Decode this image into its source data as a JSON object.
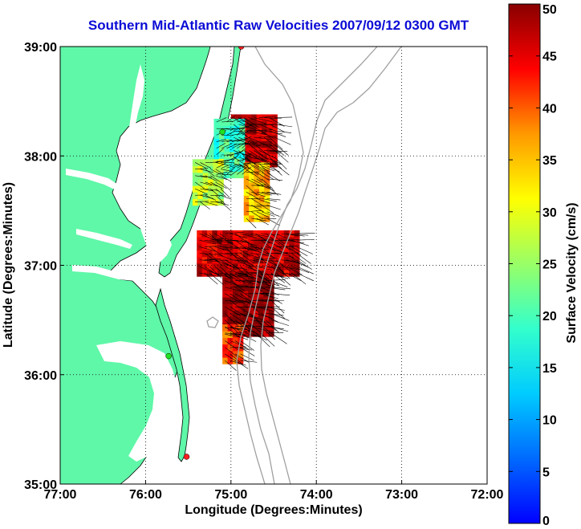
{
  "title": "Southern Mid-Atlantic Raw Velocities 2007/09/12 0300 GMT",
  "axes": {
    "xlabel": "Longitude (Degrees:Minutes)",
    "ylabel": "Latitude (Degrees:Minutes)",
    "x_ticks": [
      {
        "value": -77,
        "label": "77:00"
      },
      {
        "value": -76,
        "label": "76:00"
      },
      {
        "value": -75,
        "label": "75:00"
      },
      {
        "value": -74,
        "label": "74:00"
      },
      {
        "value": -73,
        "label": "73:00"
      },
      {
        "value": -72,
        "label": "72:00"
      }
    ],
    "y_ticks": [
      {
        "value": 35,
        "label": "35:00"
      },
      {
        "value": 36,
        "label": "36:00"
      },
      {
        "value": 37,
        "label": "37:00"
      },
      {
        "value": 38,
        "label": "38:00"
      },
      {
        "value": 39,
        "label": "39:00"
      }
    ],
    "xlim": [
      -77,
      -72
    ],
    "ylim": [
      35,
      39
    ],
    "grid": true
  },
  "colorbar": {
    "label": "Surface Velocity (cm/s)",
    "range": [
      0,
      50
    ],
    "ticks": [
      0,
      5,
      10,
      15,
      20,
      25,
      30,
      35,
      40,
      45,
      50
    ],
    "colormap": "jet"
  },
  "colors": {
    "land": "#5ff7a8",
    "water": "#ffffff",
    "bathymetry": "#a0a0a0",
    "title": "#0b0bd6",
    "vector": "#000000"
  },
  "stations": [
    {
      "lon": -74.88,
      "lat": 39.0,
      "color": "#ff2020"
    },
    {
      "lon": -75.1,
      "lat": 38.22,
      "color": "#20e020"
    },
    {
      "lon": -75.73,
      "lat": 36.17,
      "color": "#20e020"
    },
    {
      "lon": -75.52,
      "lat": 35.25,
      "color": "#ff2020"
    }
  ],
  "chart_data": {
    "type": "vector-field",
    "units": "cm/s",
    "speed_regions": [
      {
        "lon_range": [
          -75.0,
          -74.5
        ],
        "lat_range": [
          37.9,
          38.35
        ],
        "speed": 47
      },
      {
        "lon_range": [
          -75.2,
          -74.85
        ],
        "lat_range": [
          37.8,
          38.3
        ],
        "speed": 22
      },
      {
        "lon_range": [
          -75.45,
          -75.1
        ],
        "lat_range": [
          37.55,
          37.95
        ],
        "speed": 28
      },
      {
        "lon_range": [
          -74.85,
          -74.6
        ],
        "lat_range": [
          37.4,
          37.9
        ],
        "speed": 35
      },
      {
        "lon_range": [
          -75.4,
          -74.25
        ],
        "lat_range": [
          36.9,
          37.3
        ],
        "speed": 46
      },
      {
        "lon_range": [
          -75.1,
          -74.5
        ],
        "lat_range": [
          36.35,
          36.9
        ],
        "speed": 49
      },
      {
        "lon_range": [
          -75.1,
          -74.9
        ],
        "lat_range": [
          36.1,
          36.45
        ],
        "speed": 40
      }
    ]
  }
}
